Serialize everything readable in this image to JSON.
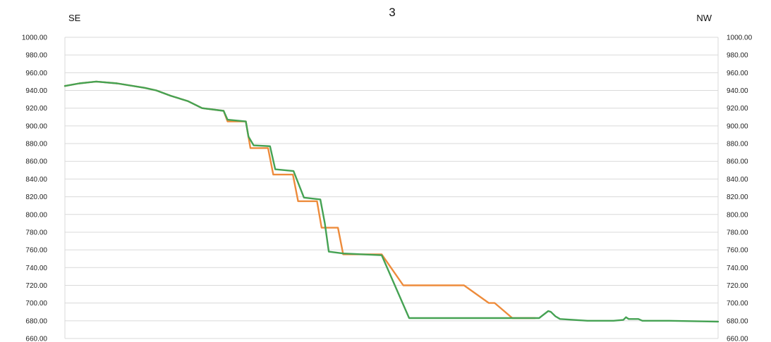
{
  "chart_data": {
    "type": "line",
    "title": "3",
    "left_label": "SE",
    "right_label": "NW",
    "ylim": [
      660,
      1000
    ],
    "xlim": [
      0,
      1000
    ],
    "y_ticks": [
      "1000.00",
      "980.00",
      "960.00",
      "940.00",
      "920.00",
      "900.00",
      "880.00",
      "860.00",
      "840.00",
      "820.00",
      "800.00",
      "780.00",
      "760.00",
      "740.00",
      "720.00",
      "700.00",
      "680.00",
      "660.00"
    ],
    "grid": true,
    "colors": {
      "orange": "#ed8b3b",
      "green": "#45a253",
      "grid": "#d9d9d9"
    },
    "series": [
      {
        "color": "#ed8b3b",
        "points": [
          [
            0,
            945
          ],
          [
            22,
            948
          ],
          [
            48,
            950
          ],
          [
            80,
            948
          ],
          [
            122,
            943
          ],
          [
            140,
            940
          ],
          [
            162,
            934
          ],
          [
            188,
            928
          ],
          [
            210,
            920
          ],
          [
            243,
            917
          ],
          [
            249,
            905
          ],
          [
            277,
            905
          ],
          [
            284,
            875
          ],
          [
            311,
            875
          ],
          [
            319,
            845
          ],
          [
            349,
            845
          ],
          [
            357,
            815
          ],
          [
            386,
            815
          ],
          [
            393,
            785
          ],
          [
            418,
            785
          ],
          [
            426,
            755
          ],
          [
            464,
            755
          ],
          [
            485,
            755
          ],
          [
            518,
            720
          ],
          [
            611,
            720
          ],
          [
            649,
            700
          ],
          [
            658,
            700
          ],
          [
            685,
            683
          ],
          [
            720,
            683
          ]
        ]
      },
      {
        "color": "#45a253",
        "points": [
          [
            0,
            945
          ],
          [
            22,
            948
          ],
          [
            48,
            950
          ],
          [
            80,
            948
          ],
          [
            122,
            943
          ],
          [
            140,
            940
          ],
          [
            162,
            934
          ],
          [
            188,
            928
          ],
          [
            210,
            920
          ],
          [
            243,
            917
          ],
          [
            249,
            907
          ],
          [
            277,
            905
          ],
          [
            281,
            888
          ],
          [
            289,
            878
          ],
          [
            314,
            877
          ],
          [
            322,
            851
          ],
          [
            350,
            849
          ],
          [
            366,
            819
          ],
          [
            391,
            817
          ],
          [
            398,
            790
          ],
          [
            404,
            758
          ],
          [
            426,
            756
          ],
          [
            485,
            754
          ],
          [
            527,
            683
          ],
          [
            726,
            683
          ],
          [
            740,
            691
          ],
          [
            744,
            690
          ],
          [
            751,
            685
          ],
          [
            758,
            682
          ],
          [
            800,
            680
          ],
          [
            840,
            680
          ],
          [
            855,
            681
          ],
          [
            859,
            684
          ],
          [
            863,
            682
          ],
          [
            878,
            682
          ],
          [
            884,
            680
          ],
          [
            925,
            680
          ],
          [
            1000,
            679
          ]
        ]
      }
    ]
  }
}
